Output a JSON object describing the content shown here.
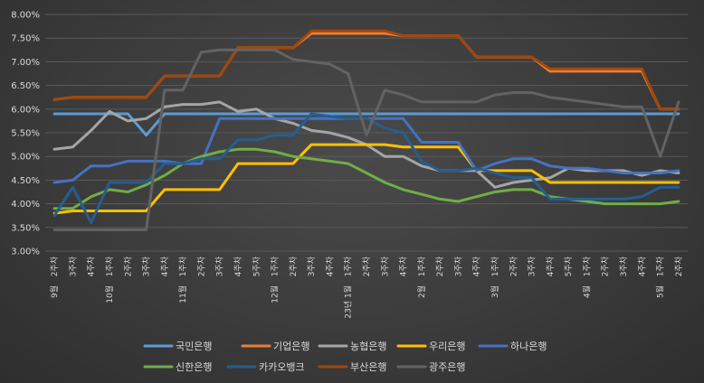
{
  "chart_data": {
    "type": "line",
    "title": "",
    "xlabel": "",
    "ylabel": "",
    "ylim": [
      3.0,
      8.0
    ],
    "y_ticks": [
      "3.00%",
      "3.50%",
      "4.00%",
      "4.50%",
      "5.00%",
      "5.50%",
      "6.00%",
      "6.50%",
      "7.00%",
      "7.50%",
      "8.00%"
    ],
    "grid": true,
    "legend": "bottom",
    "categories": [
      "9월 2주차",
      "3주차",
      "4주차",
      "10월 1주차",
      "2주차",
      "3주차",
      "4주차",
      "11월 1주차",
      "2주차",
      "3주차",
      "4주차",
      "5주차",
      "12월 1주차",
      "2주차",
      "3주차",
      "4주차",
      "23년 1월 1주차",
      "2주차",
      "3주차",
      "4주차",
      "2월 1주차",
      "2주차",
      "3주차",
      "4주차",
      "3월 1주차",
      "2주차",
      "3주차",
      "4주차",
      "5주차",
      "4월 1주차",
      "2주차",
      "3주차",
      "4주차",
      "5월 1주차",
      "2주차"
    ],
    "x_ticks": [
      {
        "week": "2주차",
        "month": "9월"
      },
      {
        "week": "3주차",
        "month": ""
      },
      {
        "week": "4주차",
        "month": ""
      },
      {
        "week": "1주차",
        "month": "10월"
      },
      {
        "week": "2주차",
        "month": ""
      },
      {
        "week": "3주차",
        "month": ""
      },
      {
        "week": "4주차",
        "month": ""
      },
      {
        "week": "1주차",
        "month": "11월"
      },
      {
        "week": "2주차",
        "month": ""
      },
      {
        "week": "3주차",
        "month": ""
      },
      {
        "week": "4주차",
        "month": ""
      },
      {
        "week": "5주차",
        "month": ""
      },
      {
        "week": "1주차",
        "month": "12월"
      },
      {
        "week": "2주차",
        "month": ""
      },
      {
        "week": "3주차",
        "month": ""
      },
      {
        "week": "4주차",
        "month": ""
      },
      {
        "week": "1주차",
        "month": "23년 1월"
      },
      {
        "week": "2주차",
        "month": ""
      },
      {
        "week": "3주차",
        "month": ""
      },
      {
        "week": "4주차",
        "month": ""
      },
      {
        "week": "1주차",
        "month": "2월"
      },
      {
        "week": "2주차",
        "month": ""
      },
      {
        "week": "3주차",
        "month": ""
      },
      {
        "week": "4주차",
        "month": ""
      },
      {
        "week": "1주차",
        "month": "3월"
      },
      {
        "week": "2주차",
        "month": ""
      },
      {
        "week": "3주차",
        "month": ""
      },
      {
        "week": "4주차",
        "month": ""
      },
      {
        "week": "5주차",
        "month": ""
      },
      {
        "week": "1주차",
        "month": "4월"
      },
      {
        "week": "2주차",
        "month": ""
      },
      {
        "week": "3주차",
        "month": ""
      },
      {
        "week": "4주차",
        "month": ""
      },
      {
        "week": "1주차",
        "month": "5월"
      },
      {
        "week": "2주차",
        "month": ""
      }
    ],
    "series": [
      {
        "name": "국민은행",
        "color": "#5b9bd5",
        "x": [
          0,
          1,
          2,
          3,
          4,
          5,
          6,
          7,
          8,
          9,
          10,
          11,
          12,
          13,
          14,
          15,
          16,
          17,
          18,
          19,
          20,
          21,
          22,
          23,
          24,
          25,
          26,
          27,
          28,
          29,
          30,
          31,
          32,
          33,
          34
        ],
        "values": [
          5.9,
          5.9,
          5.9,
          5.9,
          5.9,
          5.45,
          5.9,
          5.9,
          5.9,
          5.9,
          5.9,
          5.9,
          5.9,
          5.9,
          5.9,
          5.9,
          5.9,
          5.9,
          5.9,
          5.9,
          5.9,
          5.9,
          5.9,
          5.9,
          5.9,
          5.9,
          5.9,
          5.9,
          5.9,
          5.9,
          5.9,
          5.9,
          5.9,
          5.9,
          5.9
        ]
      },
      {
        "name": "기업은행",
        "color": "#ed7d31",
        "x": [
          0,
          1,
          2,
          3,
          4,
          5,
          6,
          7,
          8,
          9,
          10,
          11,
          12,
          13,
          14,
          15,
          16,
          17,
          18,
          19,
          20,
          21,
          22,
          23,
          24,
          25,
          26,
          27,
          28,
          29,
          30,
          31,
          32,
          33,
          34
        ],
        "values": [
          6.2,
          6.25,
          6.25,
          6.25,
          6.25,
          6.25,
          6.7,
          6.7,
          6.7,
          6.7,
          7.3,
          7.3,
          7.3,
          7.3,
          7.6,
          7.6,
          7.6,
          7.6,
          7.6,
          7.55,
          7.55,
          7.55,
          7.55,
          7.1,
          7.1,
          7.1,
          7.1,
          6.8,
          6.8,
          6.8,
          6.8,
          6.8,
          6.8,
          6.0,
          6.0
        ]
      },
      {
        "name": "농협은행",
        "color": "#a5a5a5",
        "x": [
          0,
          1,
          2,
          3,
          4,
          5,
          6,
          7,
          8,
          9,
          10,
          11,
          12,
          13,
          14,
          15,
          16,
          17,
          18,
          19,
          20,
          21,
          22,
          23,
          24,
          25,
          26,
          27,
          28,
          29,
          30,
          31,
          32,
          33,
          34
        ],
        "values": [
          5.15,
          5.2,
          5.55,
          5.95,
          5.75,
          5.8,
          6.05,
          6.1,
          6.1,
          6.15,
          5.95,
          6.0,
          5.8,
          5.7,
          5.55,
          5.5,
          5.4,
          5.25,
          5.0,
          5.0,
          4.8,
          4.7,
          4.7,
          4.7,
          4.35,
          4.45,
          4.5,
          4.55,
          4.75,
          4.7,
          4.7,
          4.7,
          4.6,
          4.7,
          4.65
        ]
      },
      {
        "name": "우리은행",
        "color": "#ffc000",
        "x": [
          0,
          1,
          2,
          3,
          4,
          5,
          6,
          7,
          8,
          9,
          10,
          11,
          12,
          13,
          14,
          15,
          16,
          17,
          18,
          19,
          20,
          21,
          22,
          23,
          24,
          25,
          26,
          27,
          28,
          29,
          30,
          31,
          32,
          33,
          34
        ],
        "values": [
          3.8,
          3.85,
          3.85,
          3.85,
          3.85,
          3.85,
          4.3,
          4.3,
          4.3,
          4.3,
          4.85,
          4.85,
          4.85,
          4.85,
          5.25,
          5.25,
          5.25,
          5.25,
          5.25,
          5.2,
          5.2,
          5.2,
          5.2,
          4.7,
          4.7,
          4.7,
          4.7,
          4.45,
          4.45,
          4.45,
          4.45,
          4.45,
          4.45,
          4.45,
          4.45
        ]
      },
      {
        "name": "하나은행",
        "color": "#4472c4",
        "x": [
          0,
          1,
          2,
          3,
          4,
          5,
          6,
          7,
          8,
          9,
          10,
          11,
          12,
          13,
          14,
          15,
          16,
          17,
          18,
          19,
          20,
          21,
          22,
          23,
          24,
          25,
          26,
          27,
          28,
          29,
          30,
          31,
          32,
          33,
          34
        ],
        "values": [
          4.45,
          4.5,
          4.8,
          4.8,
          4.9,
          4.9,
          4.9,
          4.85,
          4.85,
          5.8,
          5.8,
          5.8,
          5.8,
          5.8,
          5.8,
          5.8,
          5.8,
          5.8,
          5.8,
          5.8,
          5.3,
          5.3,
          5.3,
          4.7,
          4.85,
          4.95,
          4.95,
          4.8,
          4.75,
          4.75,
          4.7,
          4.65,
          4.65,
          4.65,
          4.7
        ]
      },
      {
        "name": "신한은행",
        "color": "#70ad47",
        "x": [
          0,
          1,
          2,
          3,
          4,
          5,
          6,
          7,
          8,
          9,
          10,
          11,
          12,
          13,
          14,
          15,
          16,
          17,
          18,
          19,
          20,
          21,
          22,
          23,
          24,
          25,
          26,
          27,
          28,
          29,
          30,
          31,
          32,
          33,
          34
        ],
        "values": [
          3.9,
          3.9,
          4.15,
          4.3,
          4.25,
          4.4,
          4.6,
          4.85,
          5.0,
          5.1,
          5.15,
          5.15,
          5.1,
          5.0,
          4.95,
          4.9,
          4.85,
          4.65,
          4.45,
          4.3,
          4.2,
          4.1,
          4.05,
          4.15,
          4.25,
          4.3,
          4.3,
          4.15,
          4.1,
          4.05,
          4.0,
          4.0,
          4.0,
          4.0,
          4.05
        ]
      },
      {
        "name": "카카오뱅크",
        "color": "#255e91",
        "x": [
          0,
          1,
          2,
          3,
          4,
          5,
          6,
          7,
          8,
          9,
          10,
          11,
          12,
          13,
          14,
          15,
          16,
          17,
          18,
          19,
          20,
          21,
          22,
          23,
          24,
          25,
          26,
          27,
          28,
          29,
          30,
          31,
          32,
          33,
          34
        ],
        "values": [
          3.75,
          4.35,
          3.6,
          4.45,
          4.45,
          4.45,
          4.85,
          4.85,
          4.95,
          4.95,
          5.35,
          5.35,
          5.45,
          5.45,
          5.9,
          5.85,
          5.8,
          5.8,
          5.6,
          5.5,
          4.9,
          4.7,
          4.7,
          4.75,
          4.65,
          4.55,
          4.55,
          4.1,
          4.1,
          4.1,
          4.1,
          4.1,
          4.15,
          4.35,
          4.35
        ]
      },
      {
        "name": "부산은행",
        "color": "#9e480e",
        "x": [
          0,
          1,
          2,
          3,
          4,
          5,
          6,
          7,
          8,
          9,
          10,
          11,
          12,
          13,
          14,
          15,
          16,
          17,
          18,
          19,
          20,
          21,
          22,
          23,
          24,
          25,
          26,
          27,
          28,
          29,
          30,
          31,
          32,
          33,
          34
        ],
        "values": [
          6.2,
          6.25,
          6.25,
          6.25,
          6.25,
          6.25,
          6.7,
          6.7,
          6.7,
          6.7,
          7.3,
          7.3,
          7.3,
          7.3,
          7.65,
          7.65,
          7.65,
          7.65,
          7.65,
          7.55,
          7.55,
          7.55,
          7.55,
          7.1,
          7.1,
          7.1,
          7.1,
          6.85,
          6.85,
          6.85,
          6.85,
          6.85,
          6.85,
          6.0,
          6.0
        ]
      },
      {
        "name": "광주은행",
        "color": "#636363",
        "x": [
          0,
          1,
          2,
          3,
          4,
          5,
          6,
          7,
          8,
          9,
          10,
          11,
          12,
          13,
          14,
          15,
          16,
          17,
          18,
          19,
          20,
          21,
          22,
          23,
          24,
          25,
          26,
          27,
          28,
          29,
          30,
          31,
          32,
          33,
          34
        ],
        "values": [
          3.45,
          3.45,
          3.45,
          3.45,
          3.45,
          3.45,
          6.4,
          6.4,
          7.2,
          7.25,
          7.25,
          7.25,
          7.25,
          7.05,
          7.0,
          6.95,
          6.75,
          5.45,
          6.4,
          6.3,
          6.15,
          6.15,
          6.15,
          6.15,
          6.3,
          6.35,
          6.35,
          6.25,
          6.2,
          6.15,
          6.1,
          6.05,
          6.05,
          5.0,
          6.15
        ]
      }
    ]
  }
}
